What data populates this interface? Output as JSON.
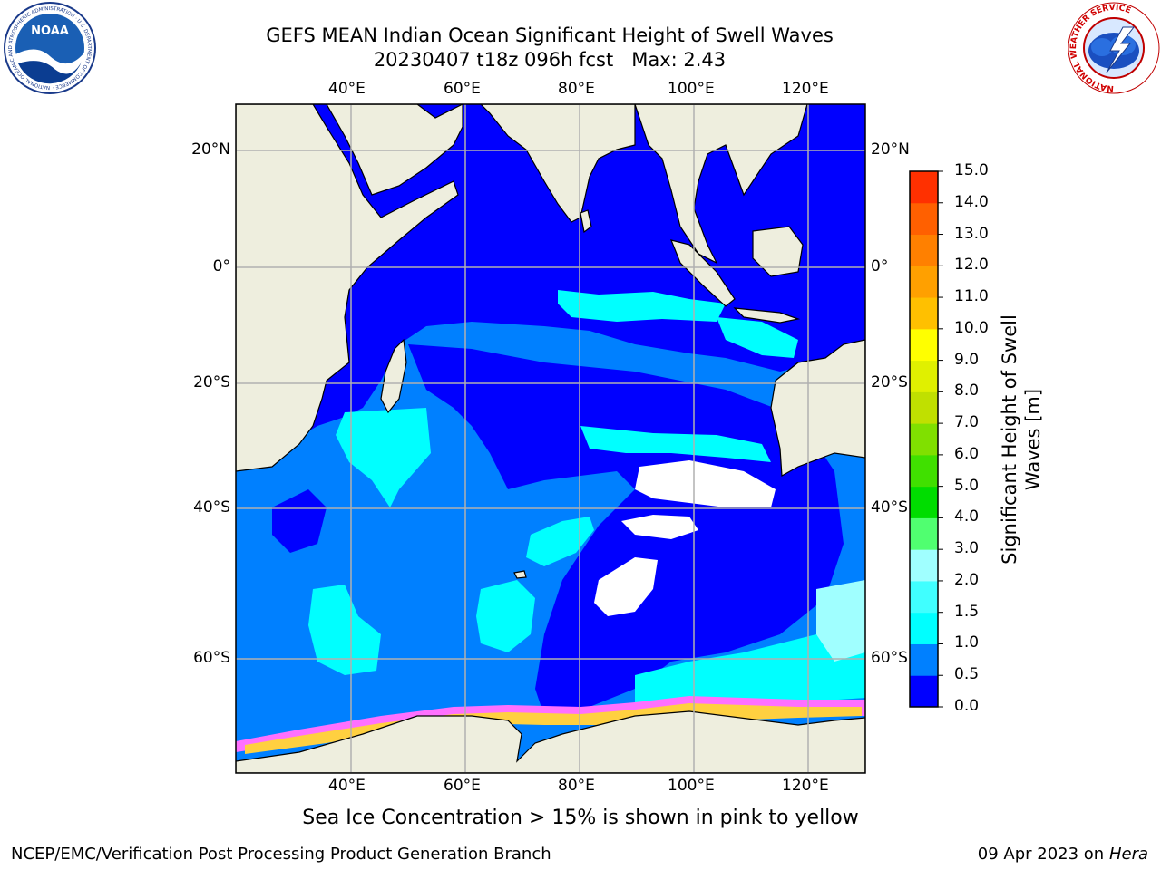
{
  "title": {
    "line1": "GEFS MEAN Indian Ocean Significant Height of Swell Waves",
    "line2": "20230407 t18z 096h fcst   Max: 2.43"
  },
  "axes": {
    "top_lon": [
      "40°E",
      "60°E",
      "80°E",
      "100°E",
      "120°E"
    ],
    "bottom_lon": [
      "40°E",
      "60°E",
      "80°E",
      "100°E",
      "120°E"
    ],
    "left_lat": [
      "20°N",
      "0°",
      "20°S",
      "40°S",
      "60°S"
    ],
    "right_lat": [
      "20°N",
      "0°",
      "20°S",
      "40°S",
      "60°S"
    ]
  },
  "colorbar": {
    "label": "Significant Height of Swell Waves [m]",
    "ticks": [
      "15.0",
      "14.0",
      "13.0",
      "12.0",
      "11.0",
      "10.0",
      "9.0",
      "8.0",
      "7.0",
      "6.0",
      "5.0",
      "4.0",
      "3.0",
      "2.0",
      "1.5",
      "1.0",
      "0.5",
      "0.0"
    ],
    "colors": [
      "#0000ff",
      "#0080ff",
      "#00ffff",
      "#40ffff",
      "#a0ffff",
      "#50ff70",
      "#00dd00",
      "#40e000",
      "#80e000",
      "#c0e000",
      "#e0f000",
      "#ffff00",
      "#ffc000",
      "#ffa000",
      "#ff8000",
      "#ff6000",
      "#ff3000",
      "#ff0000"
    ]
  },
  "caption": "Sea Ice Concentration > 15% is shown in pink to yellow",
  "footer": {
    "left": "NCEP/EMC/Verification Post Processing Product Generation Branch",
    "right_date": "09 Apr 2023 on ",
    "right_host": "Hera"
  },
  "logos": {
    "noaa_text": "NOAA",
    "noaa_ring": "NATIONAL OCEANIC AND ATMOSPHERIC ADMINISTRATION · U.S. DEPARTMENT OF COMMERCE ·",
    "nws_ring": "NATIONAL WEATHER SERVICE"
  },
  "map_colors": {
    "land": "#eeeede",
    "deep_blue": "#0000ff",
    "mid_blue": "#0080ff",
    "cyan": "#00ffff",
    "light_cyan": "#40ffff",
    "grid": "#b0b0b0"
  }
}
